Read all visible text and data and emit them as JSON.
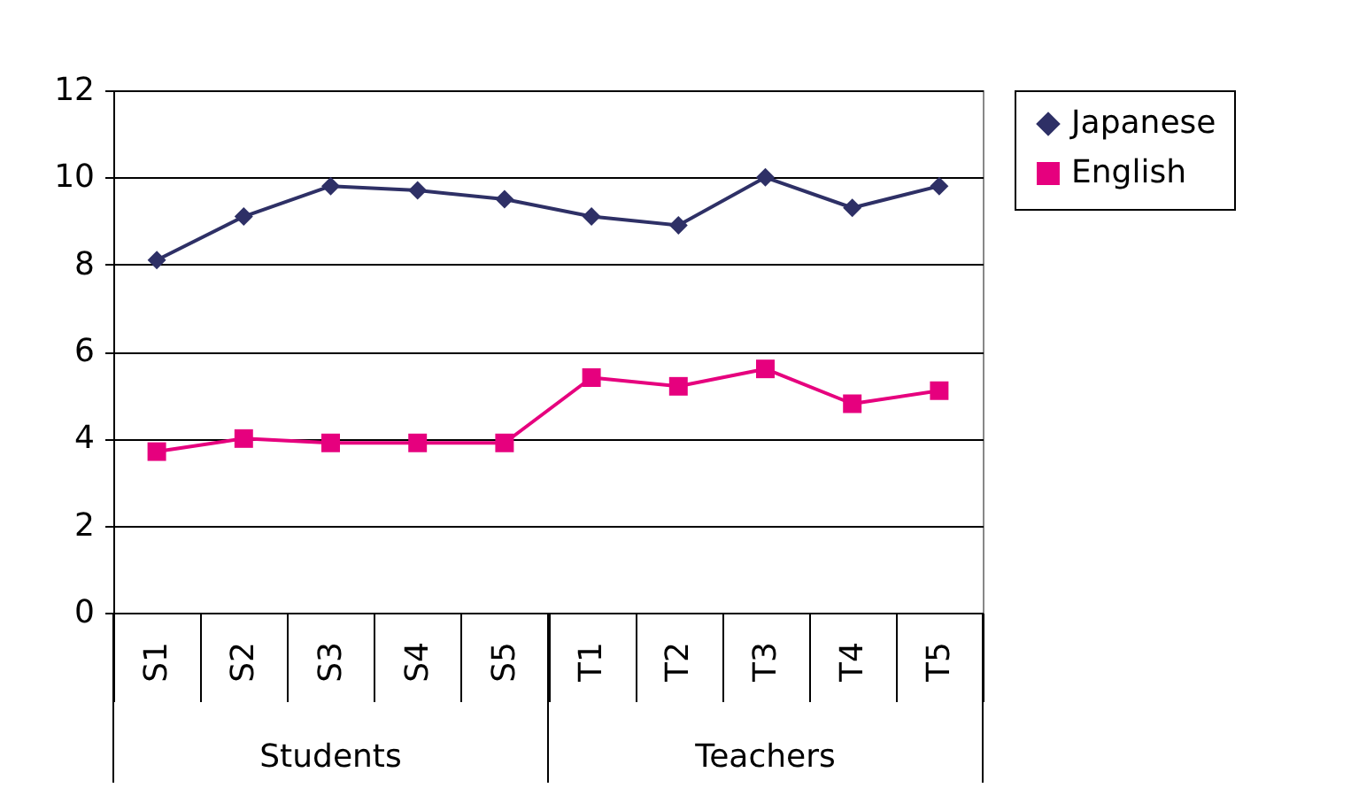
{
  "chart_data": {
    "type": "line",
    "categories": [
      "S1",
      "S2",
      "S3",
      "S4",
      "S5",
      "T1",
      "T2",
      "T3",
      "T4",
      "T5"
    ],
    "annotations": [
      "Students",
      "Teachers"
    ],
    "series": [
      {
        "name": "Japanese",
        "color": "#2e3066",
        "marker": "diamond",
        "values": [
          8.1,
          9.1,
          9.8,
          9.7,
          9.5,
          9.1,
          8.9,
          10.0,
          9.3,
          9.8
        ]
      },
      {
        "name": "English",
        "color": "#e6007e",
        "marker": "square",
        "values": [
          3.7,
          4.0,
          3.9,
          3.9,
          3.9,
          5.4,
          5.2,
          5.6,
          4.8,
          5.1
        ]
      }
    ],
    "ylim": [
      0,
      12
    ],
    "yticks": [
      0,
      2,
      4,
      6,
      8,
      10,
      12
    ],
    "grid": "y",
    "legend": "right"
  }
}
